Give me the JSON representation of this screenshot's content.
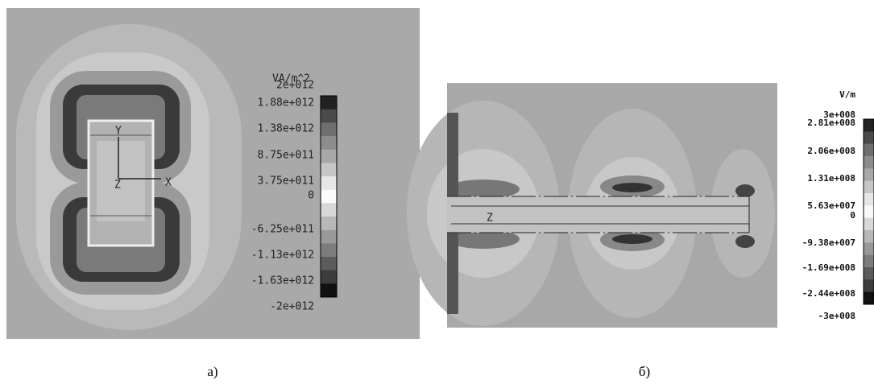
{
  "panels": [
    {
      "unit": "VA/m^2",
      "scale_labels": [
        "2e+012",
        "1.88e+012",
        "1.38e+012",
        "8.75e+011",
        "3.75e+011",
        "0",
        "-6.25e+011",
        "-1.13e+012",
        "-1.63e+012",
        "-2e+012"
      ],
      "axis_labels": [
        "Y",
        "Z",
        "X"
      ],
      "caption": "а)"
    },
    {
      "unit": "V/m",
      "scale_labels": [
        "3e+008",
        "2.81e+008",
        "2.06e+008",
        "1.31e+008",
        "5.63e+007",
        "0",
        "-9.38e+007",
        "-1.69e+008",
        "-2.44e+008",
        "-3e+008"
      ],
      "axis_labels": [
        "Z"
      ],
      "caption": "б)"
    }
  ]
}
